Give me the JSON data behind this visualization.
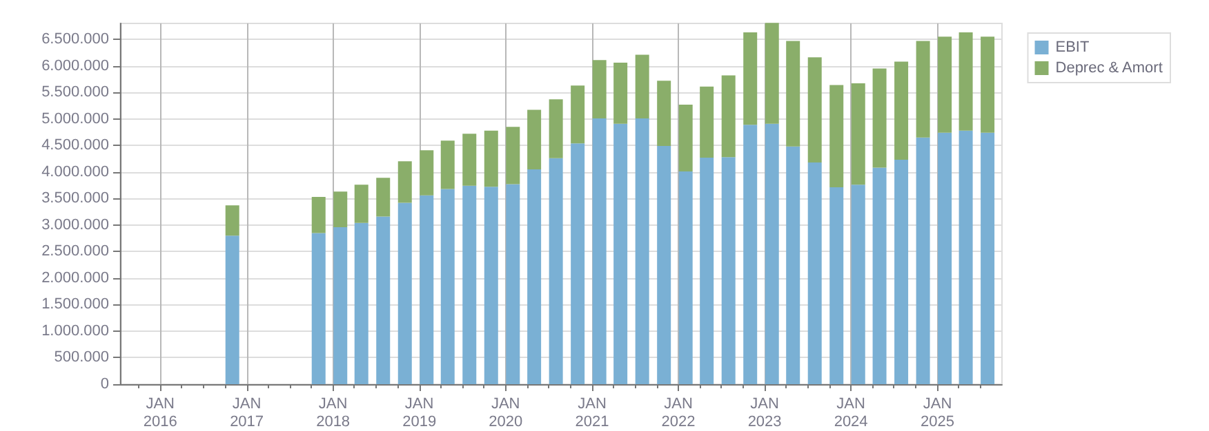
{
  "chart_data": {
    "type": "bar",
    "stacked": true,
    "grid": true,
    "legend": "top right",
    "x": [
      "2016-11",
      "2017-11",
      "2018-02",
      "2018-05",
      "2018-08",
      "2018-11",
      "2019-02",
      "2019-05",
      "2019-08",
      "2019-11",
      "2020-02",
      "2020-05",
      "2020-08",
      "2020-11",
      "2021-02",
      "2021-05",
      "2021-08",
      "2021-11",
      "2022-02",
      "2022-05",
      "2022-08",
      "2022-11",
      "2023-02",
      "2023-05",
      "2023-08",
      "2023-11",
      "2024-02",
      "2024-05",
      "2024-08",
      "2024-11",
      "2025-02",
      "2025-05",
      "2025-08"
    ],
    "series": [
      {
        "name": "EBIT",
        "color": "#7ab0d4",
        "values": [
          2800000,
          2850000,
          2960000,
          3040000,
          3160000,
          3420000,
          3560000,
          3680000,
          3740000,
          3720000,
          3770000,
          4050000,
          4260000,
          4540000,
          5010000,
          4910000,
          5010000,
          4490000,
          4010000,
          4270000,
          4280000,
          4890000,
          4910000,
          4480000,
          4180000,
          3710000,
          3760000,
          4080000,
          4230000,
          4650000,
          4740000,
          4780000,
          4740000
        ]
      },
      {
        "name": "Deprec & Amort",
        "color": "#8aae6a",
        "values": [
          570000,
          680000,
          670000,
          720000,
          730000,
          780000,
          850000,
          910000,
          980000,
          1060000,
          1080000,
          1120000,
          1110000,
          1090000,
          1100000,
          1150000,
          1200000,
          1230000,
          1260000,
          1340000,
          1540000,
          1740000,
          1900000,
          1990000,
          1980000,
          1930000,
          1910000,
          1870000,
          1850000,
          1820000,
          1810000,
          1850000,
          1810000
        ]
      }
    ],
    "xlim": [
      "2015-07-15",
      "2025-10-01"
    ],
    "xticks": [
      {
        "value": "2016-01",
        "label": "JAN 2016"
      },
      {
        "value": "2017-01",
        "label": "JAN 2017"
      },
      {
        "value": "2018-01",
        "label": "JAN 2018"
      },
      {
        "value": "2019-01",
        "label": "JAN 2019"
      },
      {
        "value": "2020-01",
        "label": "JAN 2020"
      },
      {
        "value": "2021-01",
        "label": "JAN 2021"
      },
      {
        "value": "2022-01",
        "label": "JAN 2022"
      },
      {
        "value": "2023-01",
        "label": "JAN 2023"
      },
      {
        "value": "2024-01",
        "label": "JAN 2024"
      },
      {
        "value": "2025-01",
        "label": "JAN 2025"
      },
      {
        "value": "2015-10",
        "label": null
      },
      {
        "value": "2016-04",
        "label": null
      },
      {
        "value": "2016-07",
        "label": null
      },
      {
        "value": "2016-10",
        "label": null
      },
      {
        "value": "2017-04",
        "label": null
      },
      {
        "value": "2017-07",
        "label": null
      },
      {
        "value": "2017-10",
        "label": null
      },
      {
        "value": "2018-04",
        "label": null
      },
      {
        "value": "2018-07",
        "label": null
      },
      {
        "value": "2018-10",
        "label": null
      },
      {
        "value": "2019-04",
        "label": null
      },
      {
        "value": "2019-07",
        "label": null
      },
      {
        "value": "2019-10",
        "label": null
      },
      {
        "value": "2020-04",
        "label": null
      },
      {
        "value": "2020-07",
        "label": null
      },
      {
        "value": "2020-10",
        "label": null
      },
      {
        "value": "2021-04",
        "label": null
      },
      {
        "value": "2021-07",
        "label": null
      },
      {
        "value": "2021-10",
        "label": null
      },
      {
        "value": "2022-04",
        "label": null
      },
      {
        "value": "2022-07",
        "label": null
      },
      {
        "value": "2022-10",
        "label": null
      },
      {
        "value": "2023-04",
        "label": null
      },
      {
        "value": "2023-07",
        "label": null
      },
      {
        "value": "2023-10",
        "label": null
      },
      {
        "value": "2024-04",
        "label": null
      },
      {
        "value": "2024-07",
        "label": null
      },
      {
        "value": "2024-10",
        "label": null
      },
      {
        "value": "2025-04",
        "label": null
      },
      {
        "value": "2025-07",
        "label": null
      }
    ],
    "ylim": [
      0,
      6800000
    ],
    "yticks": [
      {
        "value": 0,
        "label": "0"
      },
      {
        "value": 500000,
        "label": "500.000"
      },
      {
        "value": 1000000,
        "label": "1.000.000"
      },
      {
        "value": 1500000,
        "label": "1.500.000"
      },
      {
        "value": 2000000,
        "label": "2.000.000"
      },
      {
        "value": 2500000,
        "label": "2.500.000"
      },
      {
        "value": 3000000,
        "label": "3.000.000"
      },
      {
        "value": 3500000,
        "label": "3.500.000"
      },
      {
        "value": 4000000,
        "label": "4.000.000"
      },
      {
        "value": 4500000,
        "label": "4.500.000"
      },
      {
        "value": 5000000,
        "label": "5.000.000"
      },
      {
        "value": 5500000,
        "label": "5.500.000"
      },
      {
        "value": 6000000,
        "label": "6.000.000"
      },
      {
        "value": 6500000,
        "label": "6.500.000"
      }
    ]
  }
}
